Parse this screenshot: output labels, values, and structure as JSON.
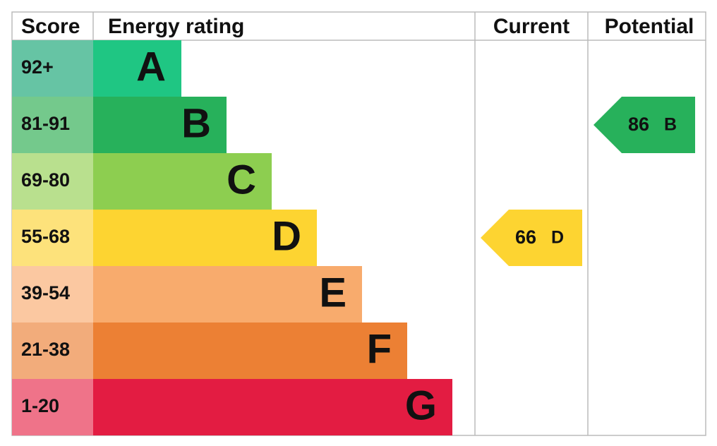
{
  "header": {
    "score": "Score",
    "energy_rating": "Energy rating",
    "current": "Current",
    "potential": "Potential"
  },
  "bands": [
    {
      "score": "92+",
      "letter": "A",
      "color": "#1fc683",
      "score_color": "#66c4a4"
    },
    {
      "score": "81-91",
      "letter": "B",
      "color": "#27b15b",
      "score_color": "#74c98c"
    },
    {
      "score": "69-80",
      "letter": "C",
      "color": "#8dce50",
      "score_color": "#b9e08e"
    },
    {
      "score": "55-68",
      "letter": "D",
      "color": "#fdd431",
      "score_color": "#fde27b"
    },
    {
      "score": "39-54",
      "letter": "E",
      "color": "#f8ab6d",
      "score_color": "#fbc8a1"
    },
    {
      "score": "21-38",
      "letter": "F",
      "color": "#ec8034",
      "score_color": "#f2ac7b"
    },
    {
      "score": "1-20",
      "letter": "G",
      "color": "#e31c42",
      "score_color": "#ef7389"
    }
  ],
  "current": {
    "value": 66,
    "letter": "D"
  },
  "potential": {
    "value": 86,
    "letter": "B"
  }
}
